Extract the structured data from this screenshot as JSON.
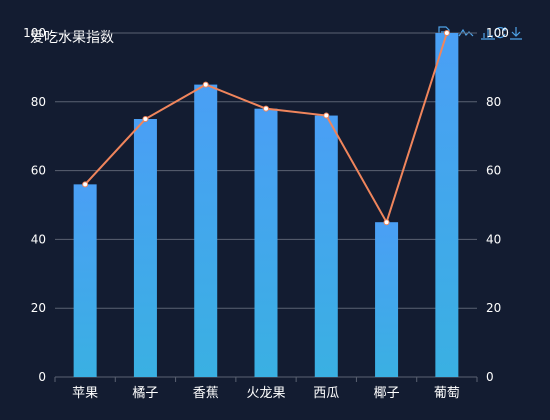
{
  "chart_data": {
    "type": "bar",
    "title": "爱吃水果指数",
    "categories": [
      "苹果",
      "橘子",
      "香蕉",
      "火龙果",
      "西瓜",
      "椰子",
      "葡萄"
    ],
    "series": [
      {
        "type": "bar",
        "values": [
          56,
          75,
          85,
          78,
          76,
          45,
          100
        ]
      },
      {
        "type": "line",
        "values": [
          56,
          75,
          85,
          78,
          76,
          45,
          100
        ]
      }
    ],
    "ylim": [
      0,
      100
    ],
    "yticks": [
      0,
      20,
      40,
      60,
      80,
      100
    ],
    "dual_y_axis": true,
    "grid": true,
    "colors": {
      "background": "#131c31",
      "bar_top": "#4a9ff5",
      "bar_bottom": "#3ab0e2",
      "line": "#f0855c",
      "point": "#ffffff",
      "grid": "#5b6272",
      "text": "#ffffff",
      "toolbox": "#4fa3e8"
    }
  },
  "toolbox": {
    "icons": [
      "data-view-icon",
      "line-chart-icon",
      "bar-chart-icon",
      "restore-icon",
      "download-icon"
    ]
  }
}
